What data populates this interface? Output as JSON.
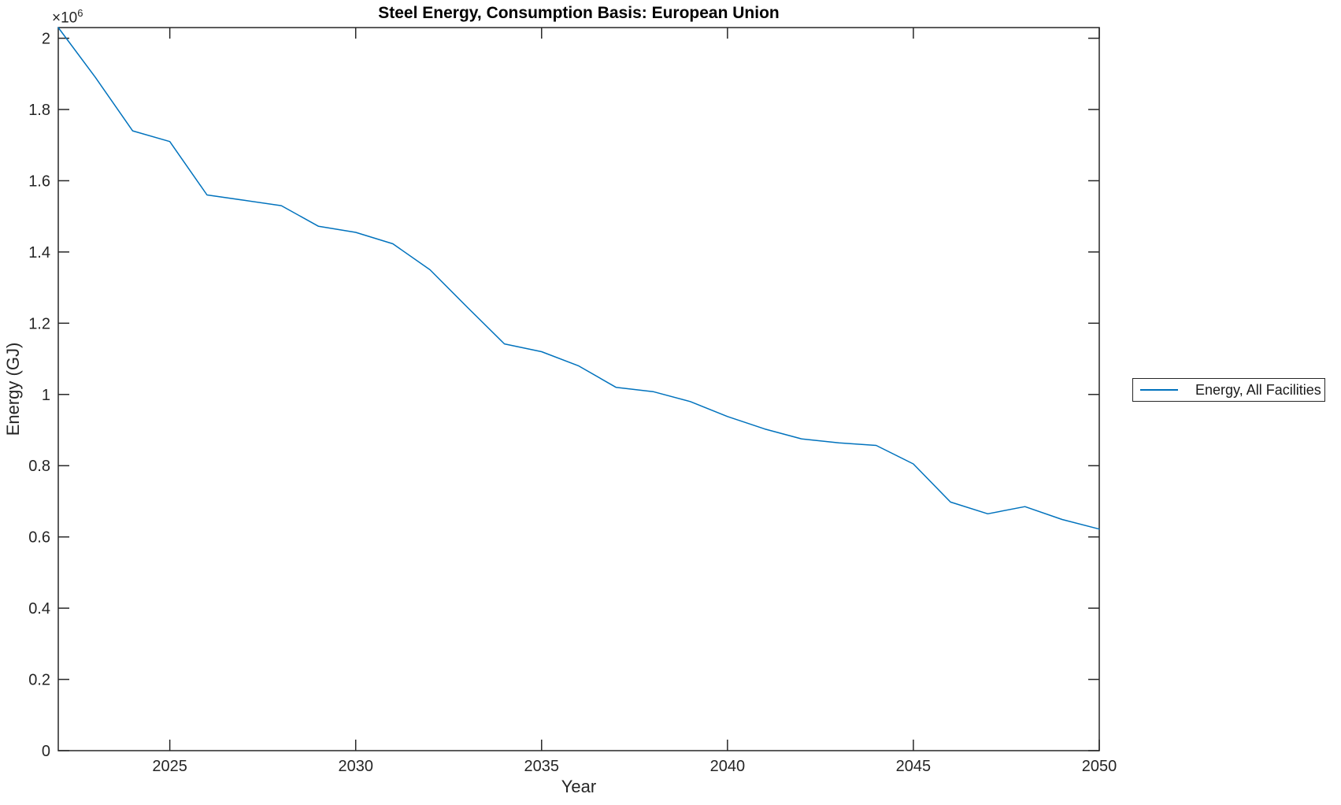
{
  "title": "Steel Energy, Consumption Basis: European Union",
  "axes": {
    "x_label": "Year",
    "y_label": "Energy (GJ)",
    "multiplier_base": "×10",
    "multiplier_exp": "6"
  },
  "legend": {
    "entries": [
      {
        "label": "Energy, All Facilities",
        "color": "#0072BD"
      }
    ]
  },
  "colors": {
    "line": "#0072BD",
    "axis": "#262626",
    "background": "#ffffff"
  },
  "chart_data": {
    "type": "line",
    "title": "Steel Energy, Consumption Basis: European Union",
    "xlabel": "Year",
    "ylabel": "Energy (GJ)",
    "y_unit_multiplier": "1e6",
    "grid": false,
    "legend_position": "right-outside",
    "xlim": [
      2022,
      2050
    ],
    "ylim": [
      0,
      2030000
    ],
    "x_ticks": [
      2025,
      2030,
      2035,
      2040,
      2045,
      2050
    ],
    "y_ticks": [
      0,
      200000,
      400000,
      600000,
      800000,
      1000000,
      1200000,
      1400000,
      1600000,
      1800000,
      2000000
    ],
    "y_tick_labels": [
      "0",
      "0.2",
      "0.4",
      "0.6",
      "0.8",
      "1",
      "1.2",
      "1.4",
      "1.6",
      "1.8",
      "2"
    ],
    "series": [
      {
        "name": "Energy, All Facilities",
        "color": "#0072BD",
        "x": [
          2022,
          2023,
          2024,
          2025,
          2026,
          2027,
          2028,
          2029,
          2030,
          2031,
          2032,
          2033,
          2034,
          2035,
          2036,
          2037,
          2038,
          2039,
          2040,
          2041,
          2042,
          2043,
          2044,
          2045,
          2046,
          2047,
          2048,
          2049,
          2050
        ],
        "y": [
          2030000,
          1890000,
          1740000,
          1710000,
          1560000,
          1545000,
          1530000,
          1472000,
          1455000,
          1423000,
          1350000,
          1245000,
          1142000,
          1120000,
          1080000,
          1020000,
          1008000,
          980000,
          938000,
          903000,
          875000,
          864000,
          857000,
          805000,
          698000,
          665000,
          685000,
          649000,
          622000
        ]
      }
    ]
  }
}
